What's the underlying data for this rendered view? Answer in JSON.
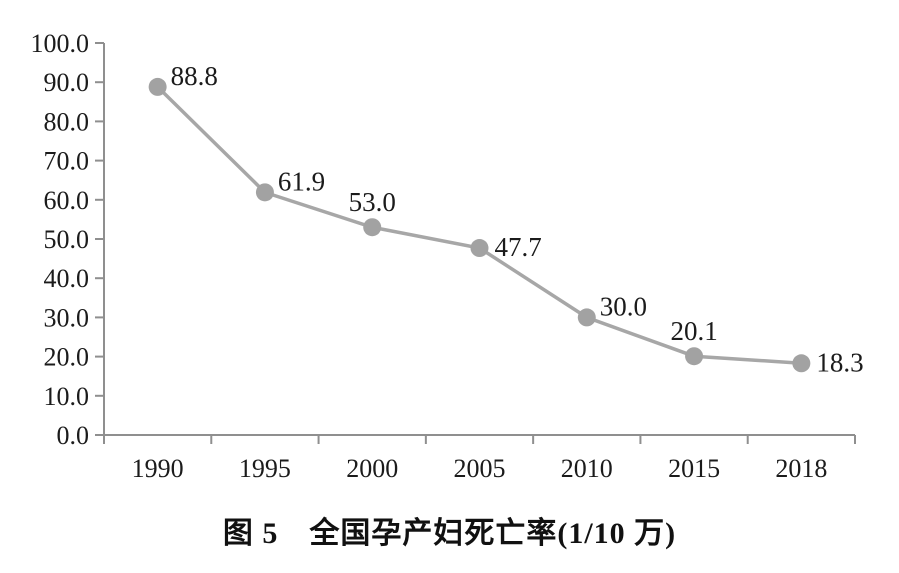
{
  "caption": {
    "text": "图 5　全国孕产妇死亡率(1/10 万)"
  },
  "chart_data": {
    "type": "line",
    "title": "图 5　全国孕产妇死亡率(1/10 万)",
    "xlabel": "",
    "ylabel": "",
    "categories": [
      "1990",
      "1995",
      "2000",
      "2005",
      "2010",
      "2015",
      "2018"
    ],
    "series": [
      {
        "name": "全国孕产妇死亡率(1/10万)",
        "values": [
          88.8,
          61.9,
          53.0,
          47.7,
          30.0,
          20.1,
          18.3
        ]
      }
    ],
    "point_labels": [
      "88.8",
      "61.9",
      "53.0",
      "47.7",
      "30.0",
      "20.1",
      "18.3"
    ],
    "label_positions": [
      "above-right",
      "above-right",
      "above",
      "right",
      "above-right",
      "above",
      "right"
    ],
    "ylim": [
      0,
      100
    ],
    "y_tick_labels": [
      "100.0",
      "90.0",
      "80.0",
      "70.0",
      "60.0",
      "50.0",
      "40.0",
      "30.0",
      "20.0",
      "10.0",
      "0.0"
    ],
    "grid": false,
    "legend_position": "none",
    "colors": {
      "line": "#a7a7a7",
      "marker": "#a2a2a2",
      "axis": "#8f8f8f",
      "text": "#1b1b1b"
    }
  }
}
